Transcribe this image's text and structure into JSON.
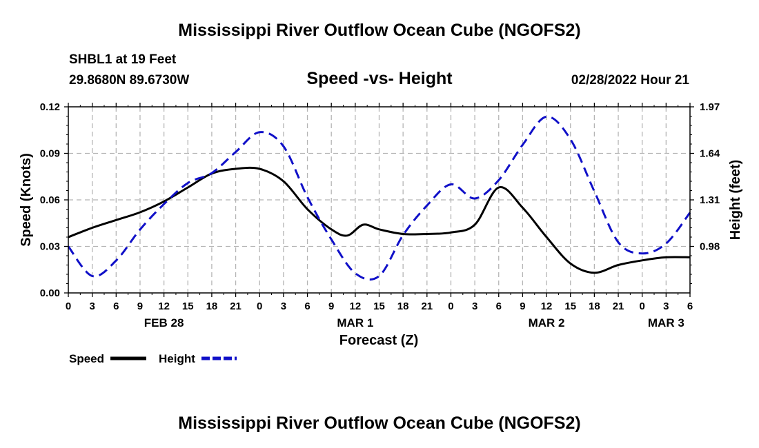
{
  "header": {
    "title": "Mississippi River Outflow Ocean Cube (NGOFS2)",
    "station": "SHBL1 at 19 Feet",
    "coords": "29.8680N  89.6730W",
    "subtitle": "Speed -vs- Height",
    "datetime": "02/28/2022 Hour 21"
  },
  "footer": {
    "title": "Mississippi River Outflow Ocean Cube (NGOFS2)"
  },
  "colors": {
    "speed": "#000000",
    "height": "#1010c8",
    "grid": "#b4b4b4"
  },
  "chart_data": {
    "type": "line",
    "title": "Speed -vs- Height",
    "xlabel": "Forecast (Z)",
    "ylabel": "Speed (Knots)",
    "y2label": "Height (feet)",
    "x_range_hours": [
      0,
      78
    ],
    "x_tick_hours": [
      0,
      3,
      6,
      9,
      12,
      15,
      18,
      21,
      24,
      27,
      30,
      33,
      36,
      39,
      42,
      45,
      48,
      51,
      54,
      57,
      60,
      63,
      66,
      69,
      72,
      75,
      78
    ],
    "x_tick_labels": [
      "0",
      "3",
      "6",
      "9",
      "12",
      "15",
      "18",
      "21",
      "0",
      "3",
      "6",
      "9",
      "12",
      "15",
      "18",
      "21",
      "0",
      "3",
      "6",
      "9",
      "12",
      "15",
      "18",
      "21",
      "0",
      "3",
      "6"
    ],
    "date_labels": [
      {
        "hour": 12,
        "label": "FEB 28"
      },
      {
        "hour": 36,
        "label": "MAR 1"
      },
      {
        "hour": 60,
        "label": "MAR 2"
      },
      {
        "hour": 75,
        "label": "MAR 3"
      }
    ],
    "ylim": [
      0,
      0.12
    ],
    "y_ticks": [
      0,
      0.03,
      0.06,
      0.09,
      0.12
    ],
    "y_tick_labels": [
      "0.00",
      "0.03",
      "0.06",
      "0.09",
      "0.12"
    ],
    "y2lim": [
      0.65,
      1.97
    ],
    "y2_ticks": [
      0.98,
      1.31,
      1.64,
      1.97
    ],
    "y2_tick_labels": [
      "0.98",
      "1.31",
      "1.64",
      "1.97"
    ],
    "grid": true,
    "series": [
      {
        "name": "Speed",
        "axis": "left",
        "style": "solid",
        "x": [
          0,
          3,
          6,
          9,
          12,
          15,
          18,
          21,
          24,
          27,
          30,
          33,
          35,
          37,
          39,
          42,
          45,
          48,
          51,
          54,
          57,
          60,
          63,
          66,
          69,
          72,
          75,
          78
        ],
        "y": [
          0.036,
          0.042,
          0.047,
          0.052,
          0.059,
          0.068,
          0.077,
          0.08,
          0.08,
          0.072,
          0.054,
          0.041,
          0.037,
          0.044,
          0.041,
          0.038,
          0.038,
          0.039,
          0.044,
          0.068,
          0.055,
          0.036,
          0.019,
          0.013,
          0.018,
          0.021,
          0.023,
          0.023
        ]
      },
      {
        "name": "Height",
        "axis": "right",
        "style": "dashed",
        "x": [
          0,
          3,
          6,
          9,
          12,
          15,
          18,
          21,
          24,
          27,
          30,
          33,
          36,
          39,
          42,
          45,
          48,
          51,
          54,
          57,
          60,
          63,
          66,
          69,
          72,
          75,
          78
        ],
        "y": [
          0.98,
          0.77,
          0.88,
          1.1,
          1.28,
          1.43,
          1.5,
          1.65,
          1.79,
          1.69,
          1.33,
          1.03,
          0.79,
          0.77,
          1.06,
          1.27,
          1.42,
          1.32,
          1.45,
          1.7,
          1.9,
          1.74,
          1.37,
          1.01,
          0.93,
          1.0,
          1.22
        ]
      }
    ],
    "legend": [
      {
        "label": "Speed",
        "series": "Speed"
      },
      {
        "label": "Height",
        "series": "Height"
      }
    ],
    "legend_position": "bottom-left"
  }
}
